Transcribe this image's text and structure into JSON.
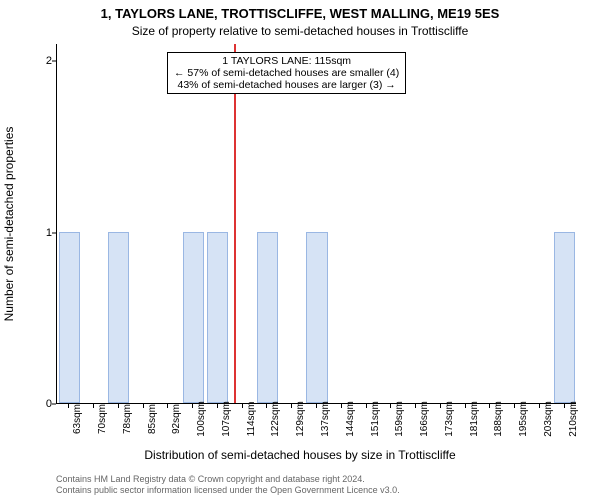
{
  "chart": {
    "type": "histogram",
    "title": "1, TAYLORS LANE, TROTTISCLIFFE, WEST MALLING, ME19 5ES",
    "subtitle": "Size of property relative to semi-detached houses in Trottiscliffe",
    "ylabel": "Number of semi-detached properties",
    "xlabel": "Distribution of semi-detached houses by size in Trottiscliffe",
    "ylim": [
      0,
      2.1
    ],
    "yticks": [
      0,
      1,
      2
    ],
    "xticks": [
      "63sqm",
      "70sqm",
      "78sqm",
      "85sqm",
      "92sqm",
      "100sqm",
      "107sqm",
      "114sqm",
      "122sqm",
      "129sqm",
      "137sqm",
      "144sqm",
      "151sqm",
      "159sqm",
      "166sqm",
      "173sqm",
      "181sqm",
      "188sqm",
      "195sqm",
      "203sqm",
      "210sqm"
    ],
    "bar_fill": "#d6e3f5",
    "bar_border": "#9ab7e3",
    "bars": [
      {
        "slot": 0,
        "height": 1
      },
      {
        "slot": 2,
        "height": 1
      },
      {
        "slot": 5,
        "height": 1
      },
      {
        "slot": 6,
        "height": 1
      },
      {
        "slot": 8,
        "height": 1
      },
      {
        "slot": 10,
        "height": 1
      },
      {
        "slot": 20,
        "height": 1
      }
    ],
    "highlight": {
      "slot": 7,
      "color": "#d33"
    },
    "annotation": {
      "line1": "1 TAYLORS LANE: 115sqm",
      "line2": "← 57% of semi-detached houses are smaller (4)",
      "line3": "43% of semi-detached houses are larger (3) →"
    },
    "credits": {
      "line1": "Contains HM Land Registry data © Crown copyright and database right 2024.",
      "line2": "Contains public sector information licensed under the Open Government Licence v3.0."
    },
    "styling": {
      "bg": "#ffffff",
      "axis_color": "#000000",
      "tick_font_size": 11,
      "label_font_size": 12,
      "title_font_size": 13,
      "credit_color": "#666666"
    }
  }
}
